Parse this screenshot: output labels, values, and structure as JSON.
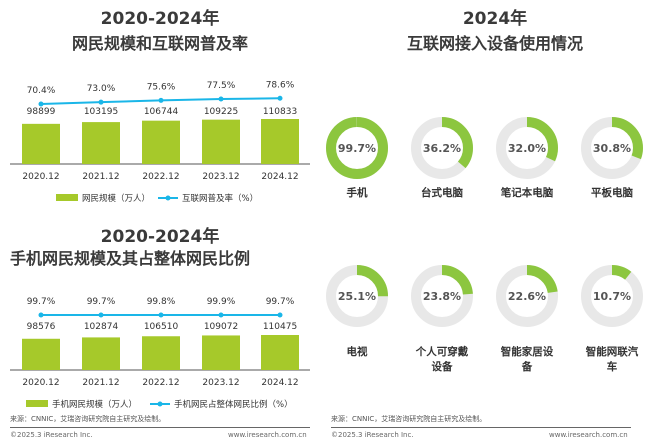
{
  "chart_data": [
    {
      "type": "bar",
      "title": "2020-2024年",
      "subtitle": "网民规模和互联网普及率",
      "categories": [
        "2020.12",
        "2021.12",
        "2022.12",
        "2023.12",
        "2024.12"
      ],
      "series": [
        {
          "name": "网民规模（万人）",
          "type": "bar",
          "values": [
            98899,
            103195,
            106744,
            109225,
            110833
          ],
          "labels": [
            "98899",
            "103195",
            "106744",
            "109225",
            "110833"
          ],
          "color": "#a6c92a"
        },
        {
          "name": "互联网普及率（%）",
          "type": "line",
          "values": [
            70.4,
            73.0,
            75.6,
            77.5,
            78.6
          ],
          "labels": [
            "70.4%",
            "73.0%",
            "75.6%",
            "77.5%",
            "78.6%"
          ],
          "color": "#1ab6e8"
        }
      ],
      "legend": "bottom"
    },
    {
      "type": "bar",
      "title": "2020-2024年",
      "subtitle": "手机网民规模及其占整体网民比例",
      "categories": [
        "2020.12",
        "2021.12",
        "2022.12",
        "2023.12",
        "2024.12"
      ],
      "series": [
        {
          "name": "手机网民规模（万人）",
          "type": "bar",
          "values": [
            98576,
            102874,
            106510,
            109072,
            110475
          ],
          "labels": [
            "98576",
            "102874",
            "106510",
            "109072",
            "110475"
          ],
          "color": "#a6c92a"
        },
        {
          "name": "手机网民占整体网民比例（%）",
          "type": "line",
          "values": [
            99.7,
            99.7,
            99.8,
            99.9,
            99.7
          ],
          "labels": [
            "99.7%",
            "99.7%",
            "99.8%",
            "99.9%",
            "99.7%"
          ],
          "color": "#1ab6e8"
        }
      ],
      "legend": "bottom"
    },
    {
      "type": "pie",
      "title": "2024年",
      "subtitle": "互联网接入设备使用情况",
      "categories": [
        "手机",
        "台式电脑",
        "笔记本电脑",
        "平板电脑",
        "电视",
        "个人可穿戴设备",
        "智能家居设备",
        "智能网联汽车"
      ],
      "values": [
        99.7,
        36.2,
        32.0,
        30.8,
        25.1,
        23.8,
        22.6,
        10.7
      ],
      "labels": [
        "99.7%",
        "36.2%",
        "32.0%",
        "30.8%",
        "25.1%",
        "23.8%",
        "22.6%",
        "10.7%"
      ],
      "color": "#8cc63f",
      "track_color": "#e8e8e8"
    }
  ],
  "footer": {
    "source": "来源：CNNIC，艾瑞咨询研究院自主研究及绘制。",
    "copyright": "©2025.3 iResearch Inc.",
    "url": "www.iresearch.com.cn"
  }
}
